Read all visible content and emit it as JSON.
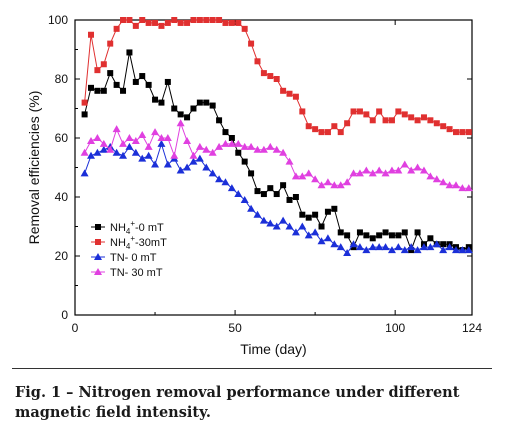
{
  "chart_data": {
    "type": "scatter",
    "xlabel": "Time (day)",
    "ylabel": "Removal efficiencies (%)",
    "xlim": [
      0,
      124
    ],
    "ylim": [
      0,
      100
    ],
    "xticks": [
      0,
      50,
      100,
      124
    ],
    "yticks": [
      0,
      20,
      40,
      60,
      80,
      100
    ],
    "grid": false,
    "legend_position": "lower-left",
    "series": [
      {
        "name": "NH4+-0 mT",
        "legend_parts": [
          "NH",
          "4",
          "+",
          "-0 mT"
        ],
        "color": "#000000",
        "marker": "square",
        "line": true,
        "x": [
          3,
          5,
          7,
          9,
          11,
          13,
          15,
          17,
          19,
          21,
          23,
          25,
          27,
          29,
          31,
          33,
          35,
          37,
          39,
          41,
          43,
          45,
          47,
          49,
          51,
          53,
          55,
          57,
          59,
          61,
          63,
          65,
          67,
          69,
          71,
          73,
          75,
          77,
          79,
          81,
          83,
          85,
          87,
          89,
          91,
          93,
          95,
          97,
          99,
          101,
          103,
          105,
          107,
          109,
          111,
          113,
          115,
          117,
          119,
          121,
          123
        ],
        "y": [
          68,
          77,
          76,
          76,
          82,
          78,
          76,
          89,
          79,
          81,
          78,
          73,
          72,
          79,
          70,
          68,
          67,
          70,
          72,
          72,
          71,
          66,
          62,
          60,
          55,
          52,
          48,
          42,
          41,
          43,
          41,
          44,
          39,
          40,
          34,
          33,
          34,
          30,
          35,
          36,
          28,
          27,
          23,
          28,
          27,
          26,
          27,
          28,
          27,
          27,
          28,
          22,
          28,
          24,
          26,
          24,
          24,
          24,
          23,
          22,
          23
        ]
      },
      {
        "name": "NH4+-30mT",
        "legend_parts": [
          "NH",
          "4",
          "+",
          "-30mT"
        ],
        "color": "#e03030",
        "marker": "square",
        "line": true,
        "x": [
          3,
          5,
          7,
          9,
          11,
          13,
          15,
          17,
          19,
          21,
          23,
          25,
          27,
          29,
          31,
          33,
          35,
          37,
          39,
          41,
          43,
          45,
          47,
          49,
          51,
          53,
          55,
          57,
          59,
          61,
          63,
          65,
          67,
          69,
          71,
          73,
          75,
          77,
          79,
          81,
          83,
          85,
          87,
          89,
          91,
          93,
          95,
          97,
          99,
          101,
          103,
          105,
          107,
          109,
          111,
          113,
          115,
          117,
          119,
          121,
          123
        ],
        "y": [
          72,
          95,
          83,
          85,
          92,
          97,
          100,
          100,
          98,
          100,
          99,
          99,
          98,
          99,
          100,
          99,
          99,
          100,
          100,
          100,
          100,
          100,
          99,
          99,
          99,
          97,
          92,
          86,
          82,
          81,
          80,
          76,
          75,
          74,
          69,
          64,
          63,
          62,
          62,
          64,
          62,
          65,
          69,
          69,
          68,
          66,
          69,
          66,
          66,
          69,
          68,
          67,
          66,
          67,
          66,
          65,
          64,
          63,
          62,
          62,
          62
        ]
      },
      {
        "name": "TN- 0 mT",
        "legend_parts": [
          "TN-  0  mT"
        ],
        "color": "#1b2fd8",
        "marker": "triangle",
        "line": true,
        "x": [
          3,
          5,
          7,
          9,
          11,
          13,
          15,
          17,
          19,
          21,
          23,
          25,
          27,
          29,
          31,
          33,
          35,
          37,
          39,
          41,
          43,
          45,
          47,
          49,
          51,
          53,
          55,
          57,
          59,
          61,
          63,
          65,
          67,
          69,
          71,
          73,
          75,
          77,
          79,
          81,
          83,
          85,
          87,
          89,
          91,
          93,
          95,
          97,
          99,
          101,
          103,
          105,
          107,
          109,
          111,
          113,
          115,
          117,
          119,
          121,
          123
        ],
        "y": [
          48,
          54,
          55,
          56,
          57,
          55,
          54,
          57,
          55,
          53,
          54,
          51,
          58,
          51,
          53,
          49,
          50,
          52,
          53,
          50,
          48,
          46,
          45,
          43,
          41,
          39,
          36,
          34,
          32,
          31,
          30,
          32,
          30,
          28,
          30,
          27,
          28,
          25,
          26,
          24,
          23,
          21,
          24,
          23,
          22,
          23,
          23,
          23,
          22,
          23,
          22,
          23,
          22,
          23,
          23,
          24,
          22,
          23,
          22,
          22,
          22
        ]
      },
      {
        "name": "TN- 30 mT",
        "legend_parts": [
          "TN-  30 mT"
        ],
        "color": "#e040e0",
        "marker": "triangle",
        "line": true,
        "x": [
          3,
          5,
          7,
          9,
          11,
          13,
          15,
          17,
          19,
          21,
          23,
          25,
          27,
          29,
          31,
          33,
          35,
          37,
          39,
          41,
          43,
          45,
          47,
          49,
          51,
          53,
          55,
          57,
          59,
          61,
          63,
          65,
          67,
          69,
          71,
          73,
          75,
          77,
          79,
          81,
          83,
          85,
          87,
          89,
          91,
          93,
          95,
          97,
          99,
          101,
          103,
          105,
          107,
          109,
          111,
          113,
          115,
          117,
          119,
          121,
          123
        ],
        "y": [
          55,
          59,
          60,
          58,
          56,
          63,
          58,
          60,
          59,
          61,
          57,
          62,
          60,
          60,
          54,
          65,
          59,
          54,
          57,
          56,
          55,
          57,
          58,
          58,
          58,
          57,
          57,
          56,
          56,
          57,
          56,
          55,
          52,
          47,
          47,
          48,
          46,
          44,
          45,
          44,
          44,
          45,
          48,
          48,
          49,
          48,
          49,
          48,
          49,
          49,
          51,
          49,
          50,
          49,
          47,
          46,
          45,
          44,
          44,
          43,
          43
        ]
      }
    ]
  },
  "caption": {
    "label": "Fig. 1 –",
    "text": " Nitrogen removal performance under different magnetic field intensity."
  }
}
